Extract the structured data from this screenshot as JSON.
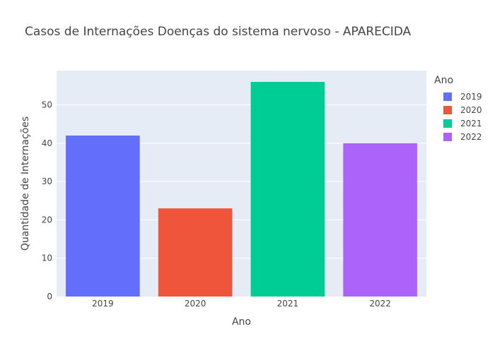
{
  "chart_data": {
    "type": "bar",
    "title": "Casos de Internações Doenças do sistema nervoso - APARECIDA",
    "xlabel": "Ano",
    "ylabel": "Quantidade de Internações",
    "categories": [
      "2019",
      "2020",
      "2021",
      "2022"
    ],
    "series": [
      {
        "name": "2019",
        "category": "2019",
        "value": 42,
        "color": "#636efa"
      },
      {
        "name": "2020",
        "category": "2020",
        "value": 23,
        "color": "#EF553B"
      },
      {
        "name": "2021",
        "category": "2021",
        "value": 56,
        "color": "#00cc96"
      },
      {
        "name": "2022",
        "category": "2022",
        "value": 40,
        "color": "#ab63fa"
      }
    ],
    "ylim": [
      0,
      58.95
    ],
    "yticks": [
      0,
      10,
      20,
      30,
      40,
      50
    ],
    "grid": true,
    "legend": {
      "title": "Ano",
      "placement": "right"
    },
    "plot_bgcolor": "#e5ecf6"
  }
}
